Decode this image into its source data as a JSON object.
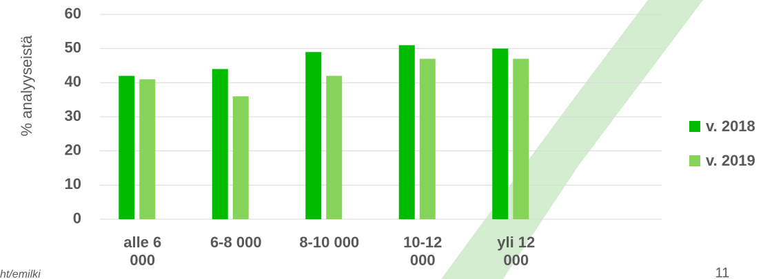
{
  "chart_data": {
    "type": "bar",
    "y_label": "% analyyseistä",
    "categories": [
      "alle 6\n000",
      "6-8 000",
      "8-10 000",
      "10-12\n000",
      "yli 12\n000"
    ],
    "series": [
      {
        "name": "v. 2018",
        "color": "#00bb00",
        "values": [
          42,
          44,
          49,
          51,
          50
        ]
      },
      {
        "name": "v. 2019",
        "color": "#86d35a",
        "values": [
          41,
          36,
          42,
          47,
          47
        ]
      }
    ],
    "ylim": [
      0,
      60
    ],
    "yticks": [
      0,
      10,
      20,
      30,
      40,
      50,
      60
    ],
    "grid": true,
    "legend": "right"
  },
  "footer": {
    "source": "ht/emilki",
    "page": "11"
  }
}
